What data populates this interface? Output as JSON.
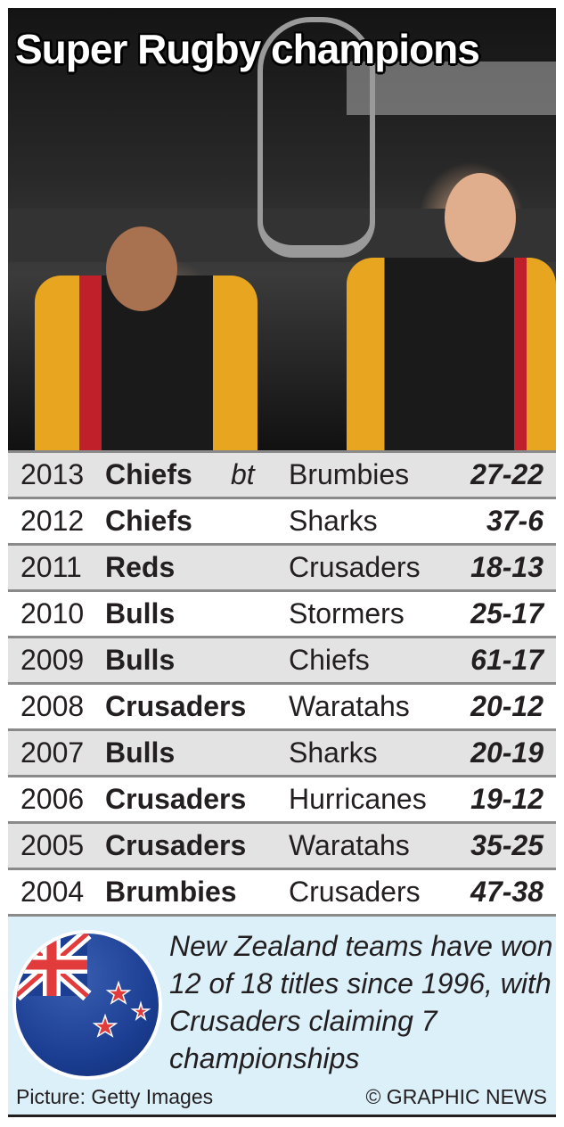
{
  "title": "Super Rugby champions",
  "table": {
    "connector": "bt",
    "rows": [
      {
        "year": "2013",
        "winner": "Chiefs",
        "opponent": "Brumbies",
        "score": "27-22"
      },
      {
        "year": "2012",
        "winner": "Chiefs",
        "opponent": "Sharks",
        "score": "37-6"
      },
      {
        "year": "2011",
        "winner": "Reds",
        "opponent": "Crusaders",
        "score": "18-13"
      },
      {
        "year": "2010",
        "winner": "Bulls",
        "opponent": "Stormers",
        "score": "25-17"
      },
      {
        "year": "2009",
        "winner": "Bulls",
        "opponent": "Chiefs",
        "score": "61-17"
      },
      {
        "year": "2008",
        "winner": "Crusaders",
        "opponent": "Waratahs",
        "score": "20-12"
      },
      {
        "year": "2007",
        "winner": "Bulls",
        "opponent": "Sharks",
        "score": "20-19"
      },
      {
        "year": "2006",
        "winner": "Crusaders",
        "opponent": "Hurricanes",
        "score": "19-12"
      },
      {
        "year": "2005",
        "winner": "Crusaders",
        "opponent": "Waratahs",
        "score": "35-25"
      },
      {
        "year": "2004",
        "winner": "Brumbies",
        "opponent": "Crusaders",
        "score": "47-38"
      }
    ]
  },
  "note": "New Zealand teams have won 12 of 18 titles since 1996, with Crusaders claiming 7 championships",
  "credit": "Picture: Getty Images",
  "copyright": "© GRAPHIC NEWS",
  "icons": {
    "flag": "new-zealand-flag-icon"
  },
  "colors": {
    "row_shade": "#e3e3e4",
    "note_bg": "#dcf0fa",
    "flag_blue": "#1c3f94",
    "flag_red": "#e23b3b"
  }
}
